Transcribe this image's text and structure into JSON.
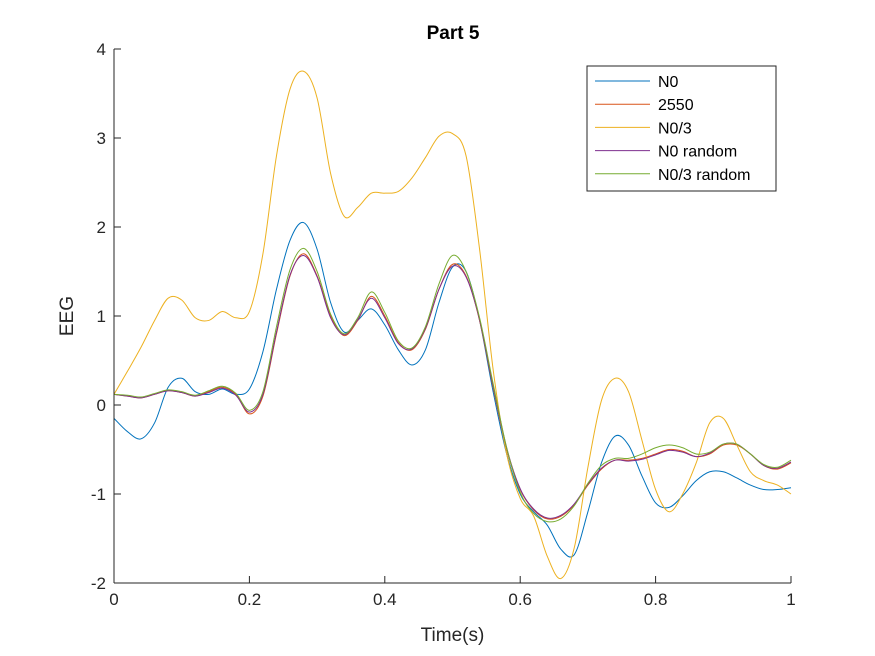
{
  "chart_data": {
    "type": "line",
    "title": "Part 5",
    "xlabel": "Time(s)",
    "ylabel": "EEG",
    "xlim": [
      0,
      1
    ],
    "ylim": [
      -2,
      4
    ],
    "xticks": [
      0,
      0.2,
      0.4,
      0.6,
      0.8,
      1
    ],
    "xtick_labels": [
      "0",
      "0.2",
      "0.4",
      "0.6",
      "0.8",
      "1"
    ],
    "yticks": [
      -2,
      -1,
      0,
      1,
      2,
      3,
      4
    ],
    "ytick_labels": [
      "-2",
      "-1",
      "0",
      "1",
      "2",
      "3",
      "4"
    ],
    "grid": false,
    "legend_position": "top-right",
    "series": [
      {
        "name": "N0",
        "color": "#0072BD",
        "x": [
          0,
          0.02,
          0.04,
          0.06,
          0.08,
          0.1,
          0.12,
          0.14,
          0.16,
          0.18,
          0.2,
          0.22,
          0.24,
          0.26,
          0.28,
          0.3,
          0.32,
          0.34,
          0.36,
          0.38,
          0.4,
          0.42,
          0.44,
          0.46,
          0.48,
          0.5,
          0.52,
          0.54,
          0.56,
          0.58,
          0.6,
          0.62,
          0.64,
          0.66,
          0.68,
          0.7,
          0.72,
          0.74,
          0.76,
          0.78,
          0.8,
          0.82,
          0.84,
          0.86,
          0.88,
          0.9,
          0.92,
          0.94,
          0.96,
          0.98,
          1.0
        ],
        "values": [
          -0.15,
          -0.3,
          -0.38,
          -0.2,
          0.2,
          0.3,
          0.15,
          0.12,
          0.18,
          0.12,
          0.18,
          0.6,
          1.3,
          1.85,
          2.05,
          1.75,
          1.15,
          0.82,
          0.95,
          1.08,
          0.9,
          0.62,
          0.45,
          0.62,
          1.15,
          1.55,
          1.5,
          0.95,
          0.15,
          -0.55,
          -1.0,
          -1.2,
          -1.35,
          -1.62,
          -1.68,
          -1.2,
          -0.65,
          -0.35,
          -0.45,
          -0.8,
          -1.1,
          -1.15,
          -1.02,
          -0.85,
          -0.75,
          -0.75,
          -0.82,
          -0.9,
          -0.95,
          -0.95,
          -0.93
        ]
      },
      {
        "name": "2550",
        "color": "#D95319",
        "x": [
          0,
          0.02,
          0.04,
          0.06,
          0.08,
          0.1,
          0.12,
          0.14,
          0.16,
          0.18,
          0.2,
          0.22,
          0.24,
          0.26,
          0.28,
          0.3,
          0.32,
          0.34,
          0.36,
          0.38,
          0.4,
          0.42,
          0.44,
          0.46,
          0.48,
          0.5,
          0.52,
          0.54,
          0.56,
          0.58,
          0.6,
          0.62,
          0.64,
          0.66,
          0.68,
          0.7,
          0.72,
          0.74,
          0.76,
          0.78,
          0.8,
          0.82,
          0.84,
          0.86,
          0.88,
          0.9,
          0.92,
          0.94,
          0.96,
          0.98,
          1.0
        ],
        "values": [
          0.12,
          0.1,
          0.08,
          0.12,
          0.16,
          0.14,
          0.1,
          0.15,
          0.2,
          0.12,
          -0.1,
          0.1,
          0.8,
          1.45,
          1.7,
          1.45,
          1.0,
          0.78,
          0.95,
          1.22,
          1.0,
          0.7,
          0.62,
          0.85,
          1.3,
          1.58,
          1.45,
          0.95,
          0.2,
          -0.5,
          -0.95,
          -1.18,
          -1.28,
          -1.25,
          -1.12,
          -0.9,
          -0.72,
          -0.62,
          -0.62,
          -0.6,
          -0.55,
          -0.5,
          -0.52,
          -0.58,
          -0.55,
          -0.45,
          -0.45,
          -0.55,
          -0.68,
          -0.72,
          -0.65
        ]
      },
      {
        "name": "N0/3",
        "color": "#EDB120",
        "x": [
          0,
          0.02,
          0.04,
          0.06,
          0.08,
          0.1,
          0.12,
          0.14,
          0.16,
          0.18,
          0.2,
          0.22,
          0.24,
          0.26,
          0.28,
          0.3,
          0.32,
          0.34,
          0.36,
          0.38,
          0.4,
          0.42,
          0.44,
          0.46,
          0.48,
          0.5,
          0.52,
          0.54,
          0.56,
          0.58,
          0.6,
          0.62,
          0.64,
          0.66,
          0.68,
          0.7,
          0.72,
          0.74,
          0.76,
          0.78,
          0.8,
          0.82,
          0.84,
          0.86,
          0.88,
          0.9,
          0.92,
          0.94,
          0.96,
          0.98,
          1.0
        ],
        "values": [
          0.12,
          0.38,
          0.65,
          0.95,
          1.2,
          1.18,
          0.98,
          0.95,
          1.05,
          0.98,
          1.05,
          1.7,
          2.8,
          3.55,
          3.75,
          3.45,
          2.6,
          2.12,
          2.22,
          2.38,
          2.38,
          2.4,
          2.55,
          2.78,
          3.02,
          3.05,
          2.8,
          1.75,
          0.4,
          -0.55,
          -1.05,
          -1.25,
          -1.7,
          -1.95,
          -1.6,
          -0.7,
          0.05,
          0.3,
          0.15,
          -0.4,
          -0.95,
          -1.2,
          -1.0,
          -0.65,
          -0.2,
          -0.15,
          -0.45,
          -0.75,
          -0.85,
          -0.9,
          -1.0
        ]
      },
      {
        "name": "N0 random",
        "color": "#7E2F8E",
        "x": [
          0,
          0.02,
          0.04,
          0.06,
          0.08,
          0.1,
          0.12,
          0.14,
          0.16,
          0.18,
          0.2,
          0.22,
          0.24,
          0.26,
          0.28,
          0.3,
          0.32,
          0.34,
          0.36,
          0.38,
          0.4,
          0.42,
          0.44,
          0.46,
          0.48,
          0.5,
          0.52,
          0.54,
          0.56,
          0.58,
          0.6,
          0.62,
          0.64,
          0.66,
          0.68,
          0.7,
          0.72,
          0.74,
          0.76,
          0.78,
          0.8,
          0.82,
          0.84,
          0.86,
          0.88,
          0.9,
          0.92,
          0.94,
          0.96,
          0.98,
          1.0
        ],
        "values": [
          0.12,
          0.1,
          0.08,
          0.12,
          0.16,
          0.14,
          0.1,
          0.14,
          0.19,
          0.11,
          -0.08,
          0.12,
          0.82,
          1.46,
          1.68,
          1.44,
          0.98,
          0.79,
          0.96,
          1.2,
          0.98,
          0.69,
          0.63,
          0.86,
          1.3,
          1.56,
          1.44,
          0.96,
          0.22,
          -0.48,
          -0.94,
          -1.17,
          -1.27,
          -1.24,
          -1.11,
          -0.89,
          -0.71,
          -0.62,
          -0.63,
          -0.61,
          -0.56,
          -0.51,
          -0.53,
          -0.58,
          -0.54,
          -0.44,
          -0.44,
          -0.55,
          -0.68,
          -0.71,
          -0.64
        ]
      },
      {
        "name": "N0/3 random",
        "color": "#77AC30",
        "x": [
          0,
          0.02,
          0.04,
          0.06,
          0.08,
          0.1,
          0.12,
          0.14,
          0.16,
          0.18,
          0.2,
          0.22,
          0.24,
          0.26,
          0.28,
          0.3,
          0.32,
          0.34,
          0.36,
          0.38,
          0.4,
          0.42,
          0.44,
          0.46,
          0.48,
          0.5,
          0.52,
          0.54,
          0.56,
          0.58,
          0.6,
          0.62,
          0.64,
          0.66,
          0.68,
          0.7,
          0.72,
          0.74,
          0.76,
          0.78,
          0.8,
          0.82,
          0.84,
          0.86,
          0.88,
          0.9,
          0.92,
          0.94,
          0.96,
          0.98,
          1.0
        ],
        "values": [
          0.12,
          0.11,
          0.09,
          0.13,
          0.17,
          0.15,
          0.11,
          0.16,
          0.21,
          0.13,
          -0.06,
          0.15,
          0.88,
          1.52,
          1.76,
          1.5,
          1.02,
          0.8,
          0.98,
          1.27,
          1.04,
          0.72,
          0.64,
          0.88,
          1.36,
          1.68,
          1.5,
          0.98,
          0.24,
          -0.48,
          -0.98,
          -1.22,
          -1.31,
          -1.28,
          -1.13,
          -0.88,
          -0.68,
          -0.6,
          -0.6,
          -0.55,
          -0.48,
          -0.45,
          -0.48,
          -0.55,
          -0.53,
          -0.44,
          -0.44,
          -0.55,
          -0.67,
          -0.7,
          -0.62
        ]
      }
    ]
  }
}
